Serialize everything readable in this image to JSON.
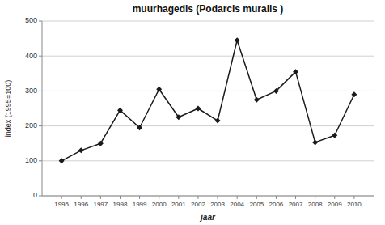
{
  "chart_data": {
    "type": "line",
    "title": "muurhagedis (Podarcis muralis )",
    "xlabel": "jaar",
    "ylabel": "index (1995=100)",
    "x": [
      1995,
      1996,
      1997,
      1998,
      1999,
      2000,
      2001,
      2002,
      2003,
      2004,
      2005,
      2006,
      2007,
      2008,
      2009,
      2010
    ],
    "values": [
      100,
      130,
      150,
      245,
      195,
      305,
      225,
      250,
      215,
      445,
      275,
      300,
      355,
      153,
      173,
      290
    ],
    "xlim": [
      1994,
      2011
    ],
    "xticks": [
      1995,
      1996,
      1997,
      1998,
      1999,
      2000,
      2001,
      2002,
      2003,
      2004,
      2005,
      2006,
      2007,
      2008,
      2009,
      2010
    ],
    "ylim": [
      0,
      500
    ],
    "yticks": [
      0,
      100,
      200,
      300,
      400,
      500
    ],
    "grid": true,
    "marker": "diamond",
    "color": "#1a1a1a"
  }
}
